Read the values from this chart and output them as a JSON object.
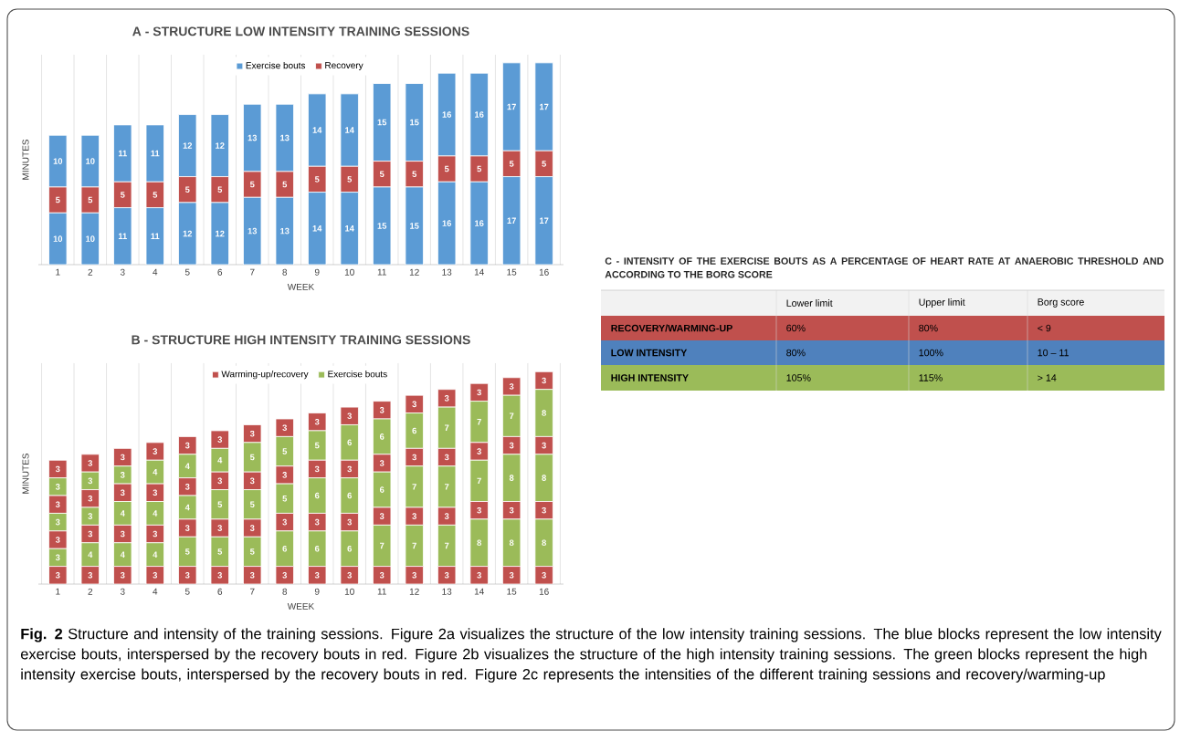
{
  "chart_data": [
    {
      "type": "bar",
      "title": "A - STRUCTURE LOW INTENSITY TRAINING SESSIONS",
      "xlabel": "WEEK",
      "ylabel": "MINUTES",
      "categories": [
        "1",
        "2",
        "3",
        "4",
        "5",
        "6",
        "7",
        "8",
        "9",
        "10",
        "11",
        "12",
        "13",
        "14",
        "15",
        "16"
      ],
      "stacked": true,
      "data_labels": true,
      "grid": "x",
      "legend": "top",
      "series": [
        {
          "name": "Exercise bouts",
          "color": "#5b9bd5",
          "values": [
            10,
            10,
            11,
            11,
            12,
            12,
            13,
            13,
            14,
            14,
            15,
            15,
            16,
            16,
            17,
            17
          ]
        },
        {
          "name": "Recovery",
          "color": "#c0504d",
          "values": [
            5,
            5,
            5,
            5,
            5,
            5,
            5,
            5,
            5,
            5,
            5,
            5,
            5,
            5,
            5,
            5
          ]
        },
        {
          "color": "#5b9bd5",
          "values": [
            10,
            10,
            11,
            11,
            12,
            12,
            13,
            13,
            14,
            14,
            15,
            15,
            16,
            16,
            17,
            17
          ]
        }
      ]
    },
    {
      "type": "bar",
      "title": "B - STRUCTURE HIGH INTENSITY TRAINING SESSIONS",
      "xlabel": "WEEK",
      "ylabel": "MINUTES",
      "categories": [
        "1",
        "2",
        "3",
        "4",
        "5",
        "6",
        "7",
        "8",
        "9",
        "10",
        "11",
        "12",
        "13",
        "14",
        "15",
        "16"
      ],
      "stacked": true,
      "data_labels": true,
      "grid": "x",
      "legend": "top",
      "series": [
        {
          "name": "Warming-up/recovery",
          "color": "#c0504d",
          "values": [
            3,
            3,
            3,
            3,
            3,
            3,
            3,
            3,
            3,
            3,
            3,
            3,
            3,
            3,
            3,
            3
          ]
        },
        {
          "name": "Exercise bouts",
          "color": "#9bbb59",
          "values": [
            3,
            4,
            4,
            4,
            5,
            5,
            5,
            6,
            6,
            6,
            7,
            7,
            7,
            8,
            8,
            8
          ]
        },
        {
          "color": "#c0504d",
          "values": [
            3,
            3,
            3,
            3,
            3,
            3,
            3,
            3,
            3,
            3,
            3,
            3,
            3,
            3,
            3,
            3
          ]
        },
        {
          "color": "#9bbb59",
          "values": [
            3,
            3,
            4,
            4,
            4,
            5,
            5,
            5,
            6,
            6,
            6,
            7,
            7,
            7,
            8,
            8
          ]
        },
        {
          "color": "#c0504d",
          "values": [
            3,
            3,
            3,
            3,
            3,
            3,
            3,
            3,
            3,
            3,
            3,
            3,
            3,
            3,
            3,
            3
          ]
        },
        {
          "color": "#9bbb59",
          "values": [
            3,
            3,
            3,
            4,
            4,
            4,
            5,
            5,
            5,
            6,
            6,
            6,
            7,
            7,
            7,
            8
          ]
        },
        {
          "color": "#c0504d",
          "values": [
            3,
            3,
            3,
            3,
            3,
            3,
            3,
            3,
            3,
            3,
            3,
            3,
            3,
            3,
            3,
            3
          ]
        }
      ]
    },
    {
      "type": "other",
      "title": "C - INTENSITY OF THE EXERCISE BOUTS AS A PERCENTAGE OF HEART RATE AT ANAEROBIC THRESHOLD AND ACCORDING TO THE BORG SCORE",
      "categories": [
        "RECOVERY/WARMING-UP",
        "LOW INTENSITY",
        "HIGH INTENSITY"
      ],
      "colors": [
        "#c0504d",
        "#4f81bd",
        "#9bbb59"
      ],
      "cell_labels": [
        [
          "60%",
          "80%",
          "< 9"
        ],
        [
          "80%",
          "100%",
          "10 – 11"
        ],
        [
          "105%",
          "115%",
          "> 14"
        ]
      ],
      "annotations": [
        "Lower limit",
        "Upper limit",
        "Borg score",
        "**Fig. 2** Structure and intensity of the training sessions. Figure 2a visualizes the structure of the low intensity training sessions. The blue blocks represent the low intensity exercise bouts, interspersed by the recovery bouts in red. Figure 2b visualizes the structure of the high intensity training sessions. The green blocks represent the high intensity exercise bouts, interspersed by the recovery bouts in red. Figure 2c represents the intensities of the different training sessions and recovery/warming-up"
      ]
    }
  ]
}
